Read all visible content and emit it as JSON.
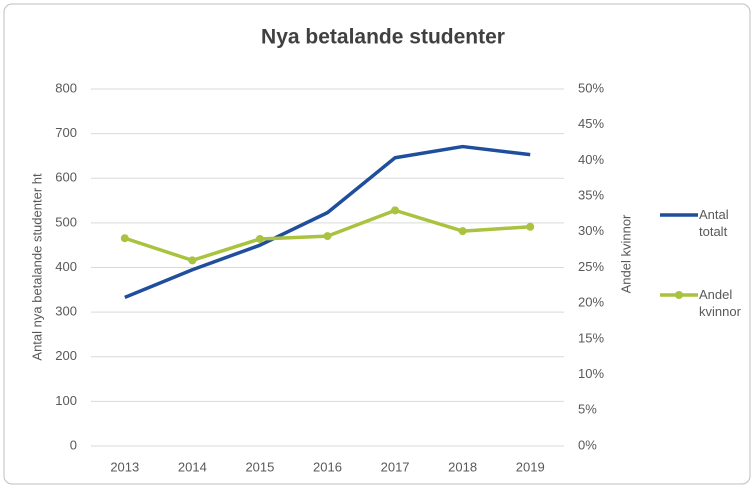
{
  "chart_data": {
    "type": "line",
    "title": "Nya betalande studenter",
    "categories": [
      "2013",
      "2014",
      "2015",
      "2016",
      "2017",
      "2018",
      "2019"
    ],
    "series": [
      {
        "name": "Antal totalt",
        "color": "#1f4e9c",
        "values": [
          333,
          395,
          450,
          523,
          646,
          671,
          653
        ]
      },
      {
        "name": "Andel kvinnor",
        "color": "#a9c23f",
        "axis": "y2",
        "marker": true,
        "values": [
          29.1,
          26.0,
          29.0,
          29.4,
          33.0,
          30.1,
          30.7
        ]
      }
    ],
    "ylabel": "Antal nya betalande studenter ht",
    "y2label": "Andel kvinnor",
    "ylim": [
      0,
      800
    ],
    "yticks": [
      0,
      100,
      200,
      300,
      400,
      500,
      600,
      700,
      800
    ],
    "y2lim": [
      0,
      50
    ],
    "y2ticks": [
      {
        "value": 0,
        "label": "0%"
      },
      {
        "value": 5,
        "label": "5%"
      },
      {
        "value": 10,
        "label": "10%"
      },
      {
        "value": 15,
        "label": "15%"
      },
      {
        "value": 20,
        "label": "20%"
      },
      {
        "value": 25,
        "label": "25%"
      },
      {
        "value": 30,
        "label": "30%"
      },
      {
        "value": 35,
        "label": "35%"
      },
      {
        "value": 40,
        "label": "40%"
      },
      {
        "value": 45,
        "label": "45%"
      },
      {
        "value": 50,
        "label": "50%"
      }
    ],
    "grid": true,
    "legend": "right"
  }
}
